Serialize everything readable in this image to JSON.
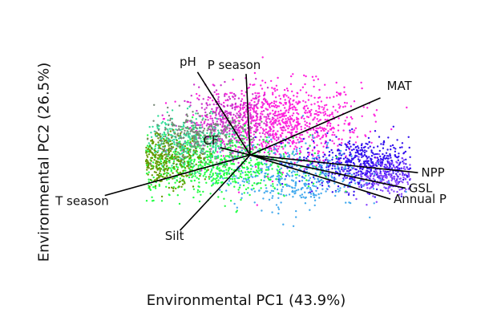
{
  "chart_data": {
    "type": "scatter",
    "xlabel": "Environmental PC1 (43.9%)",
    "ylabel": "Environmental PC2 (26.5%)",
    "xlim": [
      -3.2,
      3.2
    ],
    "ylim": [
      -3.2,
      2.9
    ],
    "grid": false,
    "legend": "none",
    "loadings": [
      {
        "label": "pH",
        "x": -1.05,
        "y": 2.25
      },
      {
        "label": "P season",
        "x": -0.08,
        "y": 2.2
      },
      {
        "label": "MAT",
        "x": 2.6,
        "y": 1.55
      },
      {
        "label": "CF",
        "x": -0.6,
        "y": 0.2
      },
      {
        "label": "NPP",
        "x": 3.35,
        "y": -0.48
      },
      {
        "label": "GSL",
        "x": 3.1,
        "y": -0.9
      },
      {
        "label": "Annual P",
        "x": 2.8,
        "y": -1.2
      },
      {
        "label": "T season",
        "x": -2.9,
        "y": -1.1
      },
      {
        "label": "Silt",
        "x": -1.4,
        "y": -2.05
      }
    ],
    "point_clusters": [
      {
        "color": "#ff22dd",
        "cx": 0.6,
        "cy": 0.85,
        "sx": 0.8,
        "sy": 0.55,
        "n": 900
      },
      {
        "color": "#cc33cc",
        "cx": -0.4,
        "cy": 0.9,
        "sx": 0.45,
        "sy": 0.45,
        "n": 350
      },
      {
        "color": "#3311ee",
        "cx": 2.3,
        "cy": -0.25,
        "sx": 0.65,
        "sy": 0.35,
        "n": 600
      },
      {
        "color": "#8844ff",
        "cx": 2.8,
        "cy": -0.6,
        "sx": 0.45,
        "sy": 0.25,
        "n": 250
      },
      {
        "color": "#44aaee",
        "cx": 0.8,
        "cy": -0.55,
        "sx": 0.7,
        "sy": 0.45,
        "n": 420
      },
      {
        "color": "#22ff44",
        "cx": -0.8,
        "cy": -0.3,
        "sx": 0.85,
        "sy": 0.4,
        "n": 700
      },
      {
        "color": "#33dd99",
        "cx": -1.3,
        "cy": 0.35,
        "sx": 0.5,
        "sy": 0.35,
        "n": 350
      },
      {
        "color": "#669900",
        "cx": -1.85,
        "cy": -0.1,
        "sx": 0.45,
        "sy": 0.35,
        "n": 450
      },
      {
        "color": "#778877",
        "cx": -1.1,
        "cy": 0.5,
        "sx": 0.55,
        "sy": 0.3,
        "n": 250
      }
    ]
  }
}
